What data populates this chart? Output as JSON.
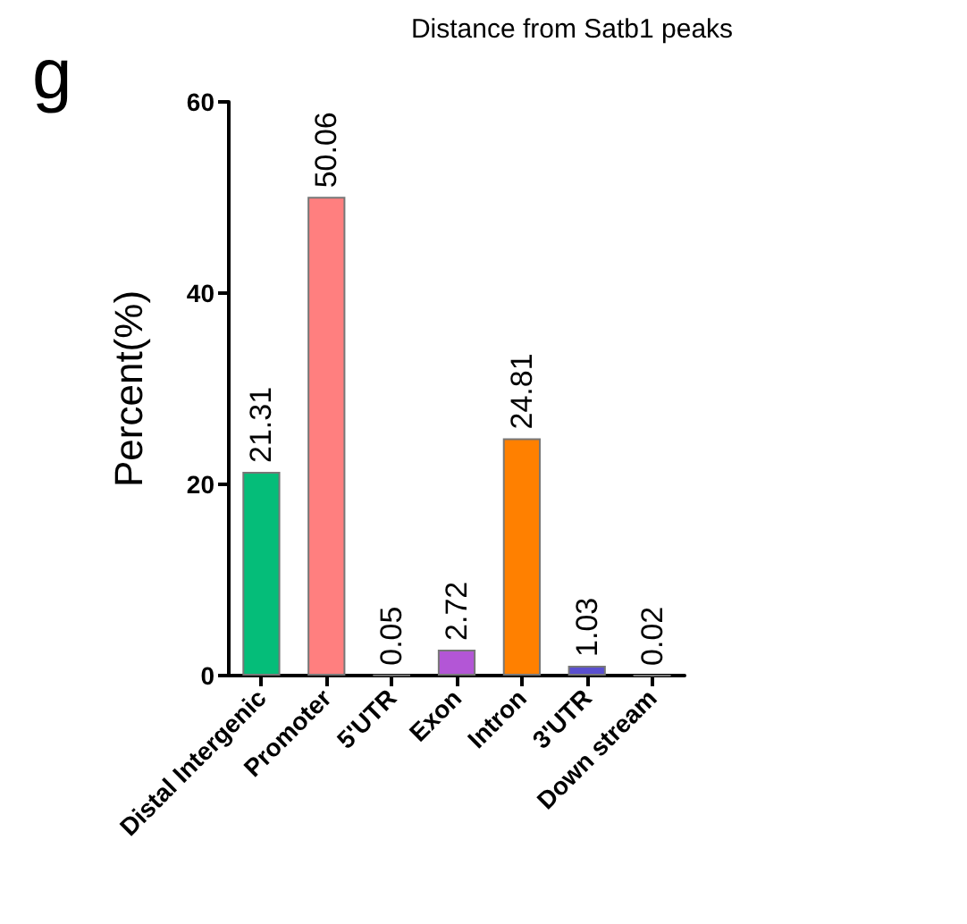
{
  "chart_data": {
    "type": "bar",
    "title": "Distance from Satb1 peaks",
    "ylabel": "Percent(%)",
    "annotations": [
      "g"
    ],
    "categories": [
      "Distal Intergenic",
      "Promoter",
      "5'UTR",
      "Exon",
      "Intron",
      "3'UTR",
      "Down stream"
    ],
    "values": [
      21.31,
      50.06,
      0.05,
      2.72,
      24.81,
      1.03,
      0.02
    ],
    "colors": [
      "#05bd79",
      "#ff7f7f",
      "#777777",
      "#b356d6",
      "#ff8000",
      "#5a4fcf",
      "#777777"
    ],
    "ylim": [
      0,
      60
    ],
    "yticks": [
      0,
      20,
      40,
      60
    ],
    "data_labels": true,
    "grid": false
  }
}
